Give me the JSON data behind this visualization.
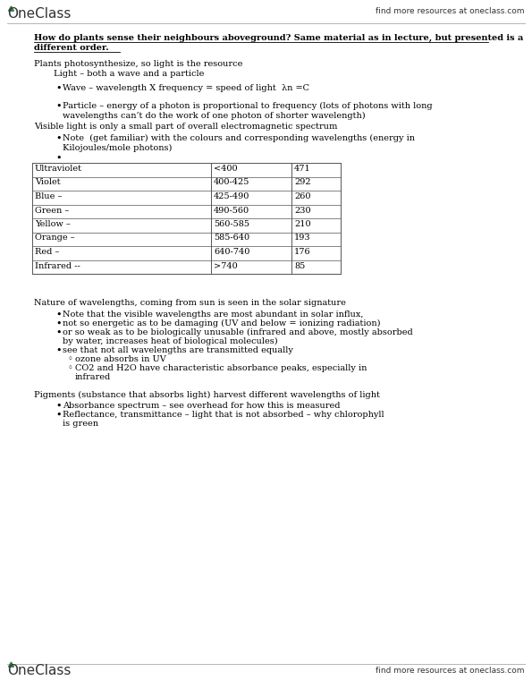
{
  "bg_color": "#ffffff",
  "header_right_text": "find more resources at oneclass.com",
  "footer_right_text": "find more resources at oneclass.com",
  "heading_line1": "How do plants sense their neighbours aboveground? Same material as in lecture, but presented is a",
  "heading_line2": "different order.",
  "intro_line1": "Plants photosynthesize, so light is the resource",
  "intro_line2": "Light – both a wave and a particle",
  "bullet1": "Wave – wavelength X frequency = speed of light  λn =C",
  "bullet2_line1": "Particle – energy of a photon is proportional to frequency (lots of photons with long",
  "bullet2_line2": "wavelengths can’t do the work of one photon of shorter wavelength)",
  "visible_line": "Visible light is only a small part of overall electromagnetic spectrum",
  "bullet3_line1": "Note  (get familiar) with the colours and corresponding wavelengths (energy in",
  "bullet3_line2": "Kilojoules/mole photons)",
  "table_rows": [
    [
      "Ultraviolet",
      "<400",
      "471"
    ],
    [
      "Violet",
      "400-425",
      "292"
    ],
    [
      "Blue –",
      "425-490",
      "260"
    ],
    [
      "Green –",
      "490-560",
      "230"
    ],
    [
      "Yellow –",
      "560-585",
      "210"
    ],
    [
      "Orange –",
      "585-640",
      "193"
    ],
    [
      "Red –",
      "640-740",
      "176"
    ],
    [
      "Infrared --",
      ">740",
      "85"
    ]
  ],
  "section2_heading": "Nature of wavelengths, coming from sun is seen in the solar signature",
  "s2b1": "Note that the visible wavelengths are most abundant in solar influx,",
  "s2b2": "not so energetic as to be damaging (UV and below = ionizing radiation)",
  "s2b3_1": "or so weak as to be biologically unusable (infrared and above, mostly absorbed",
  "s2b3_2": "by water, increases heat of biological molecules)",
  "s2b4_1": "see that not all wavelengths are transmitted equally",
  "s2b4_sub1": "ozone absorbs in UV",
  "s2b4_sub2_1": "CO2 and H2O have characteristic absorbance peaks, especially in",
  "s2b4_sub2_2": "infrared",
  "section3_heading": "Pigments (substance that absorbs light) harvest different wavelengths of light",
  "s3b1": "Absorbance spectrum – see overhead for how this is measured",
  "s3b2_1": "Reflectance, transmittance – light that is not absorbed – why chlorophyll",
  "s3b2_2": "is green",
  "logo_color": "#3a7d44",
  "logo_text_color": "#333333",
  "header_line_color": "#aaaaaa",
  "table_line_color": "#555555",
  "text_color": "#000000",
  "fs_body": 7.0,
  "fs_logo": 11.0
}
